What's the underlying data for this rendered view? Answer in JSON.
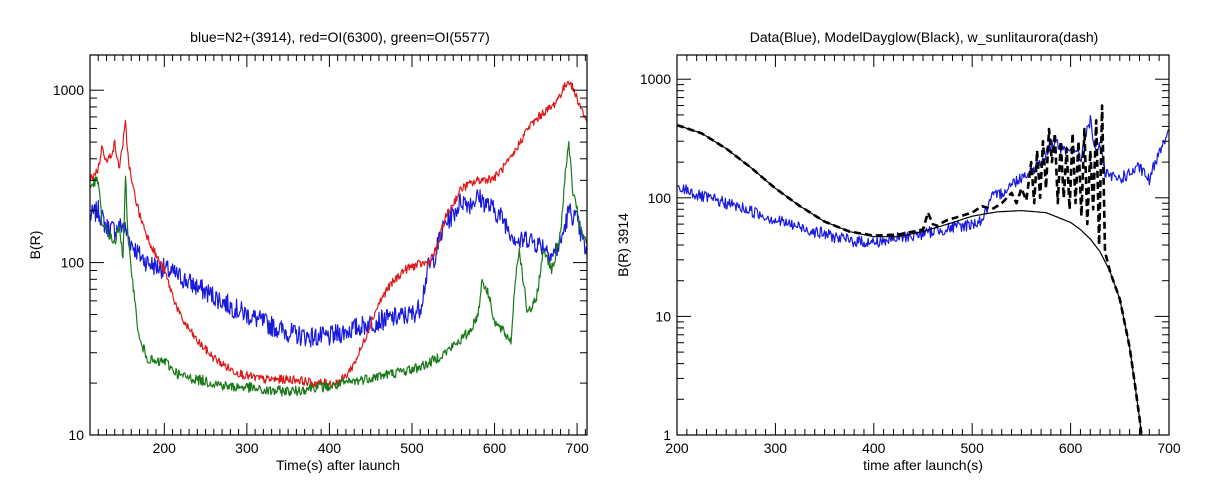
{
  "chart_data": [
    {
      "type": "line",
      "title": "blue=N2+(3914),  red=OI(6300), green=OI(5577)",
      "xlabel": "Time(s) after launch",
      "ylabel": "B(R)",
      "xlim": [
        110,
        712
      ],
      "ylim": [
        10,
        1600
      ],
      "yscale": "log",
      "xticks": [
        200,
        300,
        400,
        500,
        600,
        700
      ],
      "yticks": [
        10,
        100,
        1000
      ],
      "series": [
        {
          "color": "#1a1adc",
          "noise": 0.12,
          "x": [
            110,
            120,
            130,
            140,
            150,
            160,
            170,
            180,
            190,
            200,
            220,
            240,
            260,
            280,
            300,
            320,
            340,
            360,
            380,
            400,
            420,
            440,
            460,
            480,
            500,
            510,
            520,
            525,
            530,
            540,
            550,
            560,
            570,
            580,
            590,
            600,
            610,
            620,
            630,
            640,
            650,
            660,
            670,
            680,
            690,
            700,
            712
          ],
          "y": [
            185,
            200,
            160,
            155,
            165,
            130,
            110,
            100,
            95,
            92,
            82,
            72,
            64,
            56,
            50,
            45,
            41,
            38,
            37,
            37,
            40,
            43,
            46,
            48,
            50,
            55,
            95,
            100,
            120,
            170,
            190,
            230,
            220,
            240,
            220,
            200,
            180,
            150,
            130,
            140,
            130,
            125,
            110,
            130,
            200,
            175,
            110
          ]
        },
        {
          "color": "#dc1a1a",
          "noise": 0.05,
          "x": [
            110,
            120,
            125,
            130,
            135,
            140,
            145,
            150,
            153,
            156,
            160,
            170,
            180,
            190,
            200,
            210,
            220,
            240,
            260,
            280,
            300,
            320,
            340,
            360,
            380,
            400,
            410,
            415,
            420,
            430,
            440,
            450,
            460,
            470,
            480,
            490,
            500,
            510,
            520,
            530,
            540,
            560,
            580,
            600,
            620,
            640,
            660,
            670,
            680,
            690,
            700,
            712
          ],
          "y": [
            300,
            350,
            480,
            380,
            420,
            490,
            350,
            500,
            640,
            420,
            300,
            190,
            140,
            110,
            90,
            65,
            48,
            35,
            28,
            24,
            22,
            21,
            21,
            21,
            20,
            20,
            20,
            21,
            22,
            26,
            33,
            45,
            58,
            70,
            80,
            90,
            95,
            98,
            100,
            120,
            180,
            270,
            300,
            310,
            400,
            600,
            750,
            800,
            950,
            1150,
            900,
            650
          ]
        },
        {
          "color": "#1a7a1a",
          "noise": 0.06,
          "x": [
            110,
            120,
            125,
            130,
            135,
            140,
            145,
            150,
            153,
            156,
            160,
            165,
            170,
            180,
            190,
            200,
            210,
            220,
            240,
            260,
            280,
            300,
            320,
            340,
            360,
            380,
            400,
            420,
            440,
            460,
            480,
            500,
            520,
            540,
            560,
            570,
            580,
            585,
            590,
            595,
            600,
            610,
            620,
            625,
            630,
            640,
            650,
            660,
            670,
            680,
            685,
            690,
            695,
            700,
            705,
            712
          ],
          "y": [
            280,
            300,
            160,
            155,
            140,
            130,
            160,
            110,
            330,
            130,
            95,
            55,
            35,
            28,
            26,
            27,
            24,
            22,
            21,
            20,
            19,
            19,
            18,
            18,
            18,
            19,
            19,
            20,
            21,
            22,
            23,
            24,
            26,
            30,
            36,
            40,
            50,
            80,
            70,
            60,
            45,
            40,
            35,
            80,
            120,
            50,
            60,
            120,
            90,
            150,
            300,
            500,
            250,
            200,
            150,
            130
          ]
        }
      ]
    },
    {
      "type": "line",
      "title": "Data(Blue),  ModelDayglow(Black),   w_sunlitaurora(dash)",
      "xlabel": "time after launch(s)",
      "ylabel": "B(R) 3914",
      "xlim": [
        200,
        700
      ],
      "ylim": [
        1,
        1600
      ],
      "yscale": "log",
      "xticks": [
        200,
        300,
        400,
        500,
        600,
        700
      ],
      "yticks": [
        1,
        10,
        100,
        1000
      ],
      "series": [
        {
          "color": "#1a1adc",
          "noise": 0.1,
          "x": [
            200,
            210,
            220,
            240,
            260,
            280,
            300,
            320,
            340,
            360,
            380,
            400,
            420,
            440,
            460,
            480,
            500,
            505,
            510,
            520,
            530,
            540,
            550,
            560,
            570,
            575,
            580,
            585,
            590,
            595,
            600,
            605,
            610,
            615,
            620,
            625,
            630,
            635,
            640,
            650,
            660,
            670,
            680,
            690,
            700
          ],
          "y": [
            115,
            118,
            105,
            95,
            85,
            75,
            65,
            58,
            52,
            47,
            43,
            42,
            45,
            48,
            52,
            56,
            60,
            62,
            65,
            100,
            110,
            130,
            150,
            170,
            200,
            230,
            280,
            300,
            260,
            240,
            250,
            260,
            200,
            350,
            450,
            240,
            280,
            160,
            150,
            145,
            160,
            180,
            140,
            250,
            380
          ]
        },
        {
          "color": "#000000",
          "noise": 0,
          "x": [
            200,
            225,
            250,
            275,
            300,
            325,
            350,
            375,
            400,
            425,
            450,
            475,
            500,
            525,
            550,
            575,
            600,
            610,
            620,
            630,
            640,
            650,
            660,
            665,
            670,
            672
          ],
          "y": [
            410,
            350,
            260,
            180,
            120,
            85,
            63,
            52,
            47,
            47,
            52,
            60,
            70,
            76,
            78,
            75,
            62,
            54,
            45,
            35,
            24,
            14,
            5.5,
            2.8,
            1.4,
            1
          ]
        },
        {
          "color": "#000000",
          "dash": true,
          "noise": 0,
          "x": [
            200,
            225,
            250,
            275,
            300,
            325,
            350,
            375,
            400,
            425,
            450,
            455,
            460,
            465,
            470,
            475,
            500,
            510,
            520,
            530,
            540,
            545,
            550,
            555,
            560,
            563,
            566,
            569,
            572,
            575,
            578,
            581,
            584,
            587,
            590,
            593,
            596,
            599,
            602,
            605,
            608,
            611,
            614,
            617,
            620,
            623,
            626,
            629,
            632,
            635,
            640,
            650,
            660,
            665,
            670,
            672
          ],
          "y": [
            410,
            350,
            260,
            180,
            120,
            85,
            63,
            52,
            48,
            49,
            54,
            75,
            60,
            58,
            62,
            65,
            75,
            85,
            80,
            90,
            110,
            90,
            120,
            95,
            200,
            90,
            250,
            100,
            300,
            120,
            380,
            200,
            350,
            90,
            300,
            100,
            260,
            80,
            350,
            90,
            300,
            70,
            380,
            60,
            250,
            80,
            450,
            40,
            600,
            35,
            24,
            14,
            5.5,
            2.8,
            1.4,
            1
          ]
        }
      ]
    }
  ]
}
